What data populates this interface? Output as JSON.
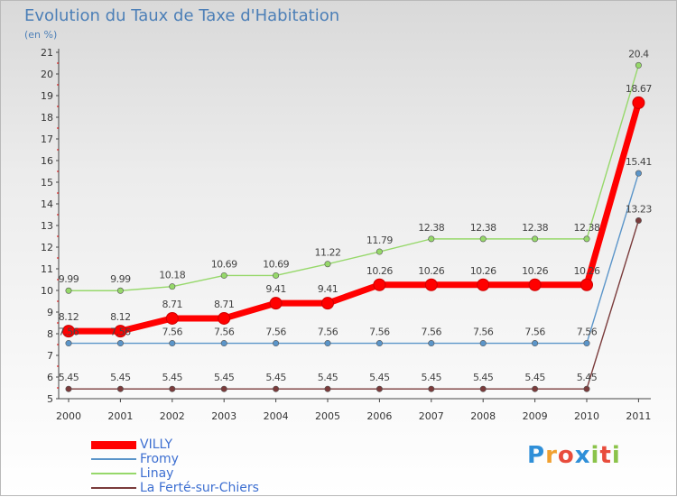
{
  "chart_data": {
    "type": "line",
    "title": "Evolution du Taux de Taxe d'Habitation",
    "subtitle": "(en %)",
    "categories": [
      "2000",
      "2001",
      "2002",
      "2003",
      "2004",
      "2005",
      "2006",
      "2007",
      "2008",
      "2009",
      "2010",
      "2011"
    ],
    "ylim": [
      5,
      21
    ],
    "yticks": [
      "5",
      "6",
      "7",
      "8",
      "9",
      "10",
      "11",
      "12",
      "13",
      "14",
      "15",
      "16",
      "17",
      "18",
      "19",
      "20",
      "21"
    ],
    "grid": false,
    "legend_position": "bottom-left",
    "series": [
      {
        "name": "VILLY",
        "color": "#ff0000",
        "values": [
          8.12,
          8.12,
          8.71,
          8.71,
          9.41,
          9.41,
          10.26,
          10.26,
          10.26,
          10.26,
          10.26,
          18.67
        ],
        "labels": [
          "8.12",
          "8.12",
          "8.71",
          "8.71",
          "9.41",
          "9.41",
          "10.26",
          "10.26",
          "10.26",
          "10.26",
          "10.26",
          "18.67"
        ]
      },
      {
        "name": "Fromy",
        "color": "#5b95c9",
        "values": [
          7.56,
          7.56,
          7.56,
          7.56,
          7.56,
          7.56,
          7.56,
          7.56,
          7.56,
          7.56,
          7.56,
          15.41
        ],
        "labels": [
          "7.56",
          "7.56",
          "7.56",
          "7.56",
          "7.56",
          "7.56",
          "7.56",
          "7.56",
          "7.56",
          "7.56",
          "7.56",
          "15.41"
        ]
      },
      {
        "name": "Linay",
        "color": "#96d86a",
        "values": [
          9.99,
          9.99,
          10.18,
          10.69,
          10.69,
          11.22,
          11.79,
          12.38,
          12.38,
          12.38,
          12.38,
          20.4
        ],
        "labels": [
          "9.99",
          "9.99",
          "10.18",
          "10.69",
          "10.69",
          "11.22",
          "11.79",
          "12.38",
          "12.38",
          "12.38",
          "12.38",
          "20.4"
        ]
      },
      {
        "name": "La Ferté-sur-Chiers",
        "color": "#7a3b3b",
        "values": [
          5.45,
          5.45,
          5.45,
          5.45,
          5.45,
          5.45,
          5.45,
          5.45,
          5.45,
          5.45,
          5.45,
          13.23
        ],
        "labels": [
          "5.45",
          "5.45",
          "5.45",
          "5.45",
          "5.45",
          "5.45",
          "5.45",
          "5.45",
          "5.45",
          "5.45",
          "5.45",
          "13.23"
        ]
      }
    ]
  },
  "brand": {
    "letters": [
      "P",
      "r",
      "o",
      "x",
      "i",
      "t",
      "i"
    ],
    "colors": [
      "#2f8fd8",
      "#f0a030",
      "#e84c3c",
      "#2f8fd8",
      "#8bc34a",
      "#e84c3c",
      "#8bc34a"
    ]
  }
}
